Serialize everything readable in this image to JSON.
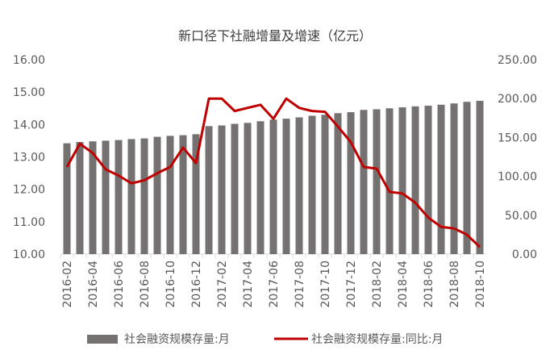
{
  "chart_data": {
    "type": "bar-line",
    "title": "新口径下社融增量及增速（亿元）",
    "categories": [
      "2016-02",
      null,
      "2016-04",
      null,
      "2016-06",
      null,
      "2016-08",
      null,
      "2016-10",
      null,
      "2016-12",
      null,
      "2017-02",
      null,
      "2017-04",
      null,
      "2017-06",
      null,
      "2017-08",
      null,
      "2017-10",
      null,
      "2017-12",
      null,
      "2018-02",
      null,
      "2018-04",
      null,
      "2018-06",
      null,
      "2018-08",
      null,
      "2018-10"
    ],
    "series": [
      {
        "name": "社会融资规模存量:月",
        "color": "#767171",
        "type": "bar",
        "values": [
          13.42,
          13.46,
          13.48,
          13.5,
          13.52,
          13.55,
          13.57,
          13.62,
          13.65,
          13.67,
          13.7,
          13.95,
          13.97,
          14.02,
          14.05,
          14.1,
          14.15,
          14.18,
          14.22,
          14.27,
          14.3,
          14.35,
          14.38,
          14.45,
          14.47,
          14.5,
          14.53,
          14.56,
          14.58,
          14.61,
          14.65,
          14.7,
          14.73
        ]
      },
      {
        "name": "社会融资规模存量:同比:月",
        "color": "#c00000",
        "type": "line",
        "axis": "y2",
        "values": [
          112,
          142,
          130,
          109,
          101,
          91,
          95,
          104,
          112,
          137,
          117,
          200,
          200,
          184,
          188,
          192,
          174,
          200,
          188,
          184,
          183,
          164,
          144,
          112,
          110,
          80,
          78,
          66,
          47,
          35,
          33,
          25,
          9
        ]
      }
    ],
    "ylim": [
      10,
      16
    ],
    "yticks": [
      {
        "value": 10,
        "label": "10.00"
      },
      {
        "value": 11,
        "label": "11.00"
      },
      {
        "value": 12,
        "label": "12.00"
      },
      {
        "value": 13,
        "label": "13.00"
      },
      {
        "value": 14,
        "label": "14.00"
      },
      {
        "value": 15,
        "label": "15.00"
      },
      {
        "value": 16,
        "label": "16.00"
      }
    ],
    "y2lim": [
      0,
      250
    ],
    "y2ticks": [
      {
        "value": 0,
        "label": "0.00"
      },
      {
        "value": 50,
        "label": "50.00"
      },
      {
        "value": 100,
        "label": "100.00"
      },
      {
        "value": 150,
        "label": "150.00"
      },
      {
        "value": 200,
        "label": "200.00"
      },
      {
        "value": 250,
        "label": "250.00"
      }
    ],
    "legend": "bottom"
  }
}
